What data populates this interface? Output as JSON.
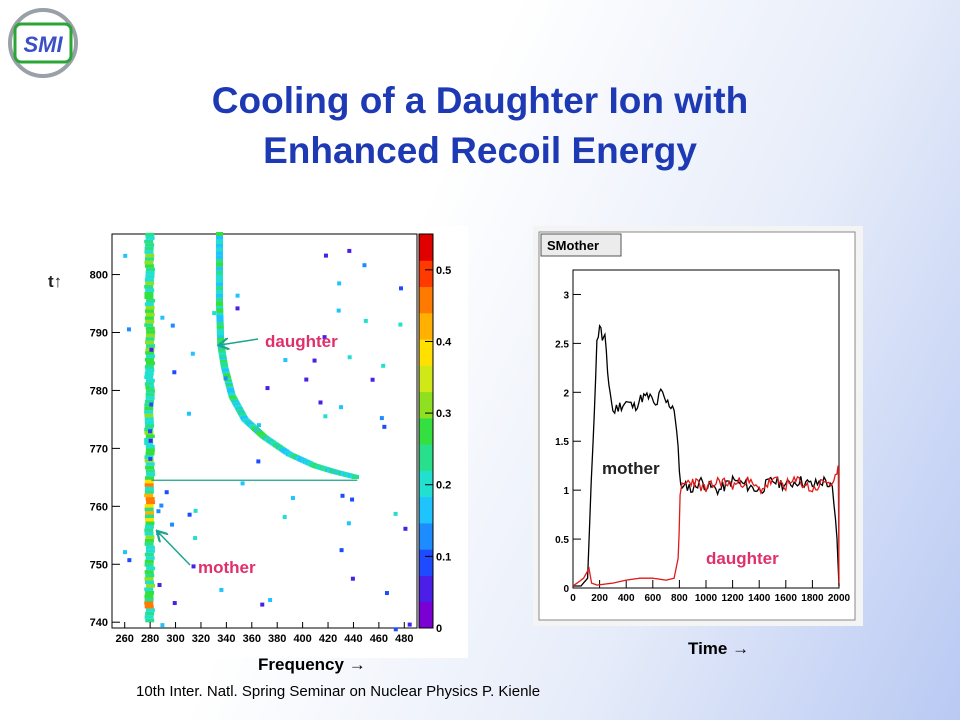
{
  "logo": {
    "text": "SMI"
  },
  "title": {
    "line1": "Cooling of a Daughter Ion with",
    "line2": "Enhanced Recoil Energy"
  },
  "left_plot": {
    "y_arrow_label": "t↑",
    "x_caption": "Frequency →",
    "daughter_label": "daughter",
    "mother_label": "mother"
  },
  "right_plot": {
    "window_title": "SMother",
    "x_caption": "Time →",
    "mother_label": "mother",
    "daughter_label": "daughter"
  },
  "footer": "10th Inter. Natl. Spring Seminar on Nuclear Physics   P. Kienle",
  "colors": {
    "title": "#1d39b4",
    "annotation_pink": "#e0306c",
    "arrow": "#1aa58c",
    "mother_trace": "#000000",
    "daughter_trace": "#e01a1a"
  },
  "chart_data": [
    {
      "type": "heatmap",
      "x_ticks": [
        "260",
        "280",
        "300",
        "320",
        "340",
        "360",
        "380",
        "400",
        "420",
        "440",
        "460",
        "480"
      ],
      "y_ticks": [
        "740",
        "750",
        "760",
        "770",
        "780",
        "790",
        "800"
      ],
      "xlim": [
        250,
        490
      ],
      "ylim": [
        739,
        807
      ],
      "colorbar_ticks": [
        "0",
        "0.1",
        "0.2",
        "0.3",
        "0.4",
        "0.5"
      ],
      "colorbar_range": [
        0,
        0.55
      ],
      "colorbar_colors": [
        "#ffffff",
        "#7b00d4",
        "#4b1fe8",
        "#1e4bff",
        "#1d8cff",
        "#1fc4ff",
        "#22e0d0",
        "#28e08c",
        "#34e040",
        "#8ee020",
        "#d0e818",
        "#ffe000",
        "#ffb000",
        "#ff7a00",
        "#ff3a00",
        "#e00000"
      ],
      "mother_track": {
        "freq": 280,
        "t_range": [
          740,
          807
        ]
      },
      "daughter_track": {
        "points": [
          [
            335,
            807
          ],
          [
            335,
            795
          ],
          [
            336,
            788
          ],
          [
            339,
            784
          ],
          [
            345,
            779
          ],
          [
            355,
            775
          ],
          [
            370,
            772
          ],
          [
            390,
            769
          ],
          [
            410,
            767
          ],
          [
            425,
            766
          ],
          [
            443,
            765
          ]
        ]
      },
      "onset_line": {
        "t": 764.5,
        "freq_range": [
          281,
          443
        ]
      }
    },
    {
      "type": "line",
      "x_ticks": [
        "0",
        "200",
        "400",
        "600",
        "800",
        "1000",
        "1200",
        "1400",
        "1600",
        "1800",
        "2000"
      ],
      "y_ticks": [
        "0",
        "0.5",
        "1",
        "1.5",
        "2",
        "2.5",
        "3"
      ],
      "xlim": [
        0,
        2000
      ],
      "ylim": [
        0,
        3.25
      ],
      "series": [
        {
          "name": "mother",
          "points": [
            [
              0,
              0.02
            ],
            [
              60,
              0.02
            ],
            [
              110,
              0.1
            ],
            [
              150,
              1.5
            ],
            [
              180,
              2.5
            ],
            [
              200,
              2.7
            ],
            [
              220,
              2.55
            ],
            [
              240,
              2.55
            ],
            [
              260,
              2.2
            ],
            [
              280,
              2.0
            ],
            [
              300,
              1.8
            ],
            [
              340,
              1.85
            ],
            [
              400,
              1.9
            ],
            [
              460,
              1.85
            ],
            [
              520,
              1.95
            ],
            [
              580,
              1.95
            ],
            [
              620,
              1.85
            ],
            [
              660,
              2.0
            ],
            [
              700,
              1.9
            ],
            [
              760,
              1.85
            ],
            [
              780,
              1.6
            ],
            [
              800,
              1.2
            ],
            [
              820,
              1.0
            ],
            [
              860,
              1.05
            ],
            [
              900,
              1.0
            ],
            [
              950,
              1.1
            ],
            [
              1000,
              1.05
            ],
            [
              1100,
              1.0
            ],
            [
              1200,
              1.1
            ],
            [
              1300,
              1.05
            ],
            [
              1400,
              1.0
            ],
            [
              1500,
              1.1
            ],
            [
              1600,
              1.05
            ],
            [
              1700,
              1.1
            ],
            [
              1800,
              1.05
            ],
            [
              1900,
              1.1
            ],
            [
              1950,
              1.0
            ],
            [
              1985,
              0.5
            ],
            [
              2000,
              0.02
            ]
          ]
        },
        {
          "name": "daughter",
          "points": [
            [
              0,
              0.02
            ],
            [
              80,
              0.1
            ],
            [
              120,
              0.2
            ],
            [
              140,
              0.05
            ],
            [
              180,
              0.03
            ],
            [
              300,
              0.05
            ],
            [
              400,
              0.08
            ],
            [
              500,
              0.1
            ],
            [
              600,
              0.1
            ],
            [
              700,
              0.08
            ],
            [
              760,
              0.1
            ],
            [
              790,
              0.3
            ],
            [
              805,
              0.9
            ],
            [
              820,
              1.05
            ],
            [
              900,
              1.1
            ],
            [
              1000,
              1.0
            ],
            [
              1100,
              1.1
            ],
            [
              1200,
              1.05
            ],
            [
              1300,
              1.1
            ],
            [
              1400,
              1.0
            ],
            [
              1500,
              1.1
            ],
            [
              1600,
              1.05
            ],
            [
              1700,
              1.1
            ],
            [
              1800,
              1.0
            ],
            [
              1900,
              1.1
            ],
            [
              1960,
              1.05
            ],
            [
              1985,
              1.15
            ],
            [
              1995,
              1.2
            ],
            [
              2000,
              0.05
            ]
          ]
        }
      ]
    }
  ]
}
